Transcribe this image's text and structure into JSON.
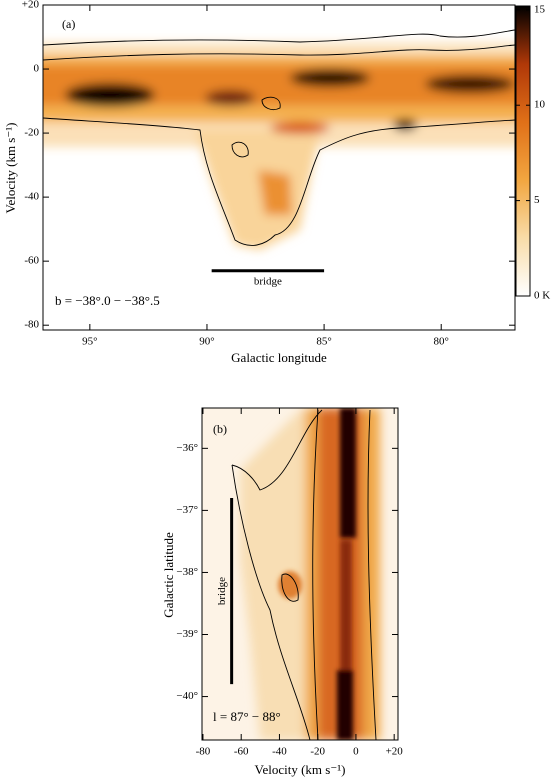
{
  "chart_data": [
    {
      "type": "heatmap",
      "panel_label": "(a)",
      "xlabel": "Galactic longitude",
      "ylabel": "Velocity (km s⁻¹)",
      "xlim": [
        97,
        76.85
      ],
      "ylim": [
        -81.5,
        20
      ],
      "xticks": [
        {
          "value": 95,
          "label": "95°"
        },
        {
          "value": 90,
          "label": "90°"
        },
        {
          "value": 85,
          "label": "85°"
        },
        {
          "value": 80,
          "label": "80°"
        }
      ],
      "yticks": [
        {
          "value": 20,
          "label": "+20"
        },
        0,
        -20,
        -40,
        -60,
        -80
      ],
      "annotation": "b = −38°.0 − −38°.5",
      "bridge": {
        "label": "bridge",
        "x": [
          89.8,
          85.0
        ],
        "y": [
          -63,
          -63
        ]
      },
      "colorbar": {
        "colors": [
          "#ffffff",
          "#f8dca8",
          "#f2a640",
          "#e07018",
          "#b03808",
          "#000000"
        ],
        "lim": [
          0,
          15.2
        ],
        "ticks": [
          15,
          10,
          5,
          {
            "value": 0,
            "label": "0 K"
          }
        ]
      }
    },
    {
      "type": "heatmap",
      "panel_label": "(b)",
      "xlabel": "Velocity (km s⁻¹)",
      "ylabel": "Galactic latitude",
      "xlim": [
        -80.5,
        22
      ],
      "ylim": [
        -40.7,
        -35.35
      ],
      "xticks": [
        -80,
        -60,
        -40,
        -20,
        0,
        {
          "value": 20,
          "label": "+20"
        }
      ],
      "yticks": [
        {
          "value": -36,
          "label": "−36°"
        },
        {
          "value": -37,
          "label": "−37°"
        },
        {
          "value": -38,
          "label": "−38°"
        },
        {
          "value": -39,
          "label": "−39°"
        },
        {
          "value": -40,
          "label": "−40°"
        }
      ],
      "annotation": "l = 87° − 88°",
      "bridge": {
        "label": "bridge",
        "x": [
          -65,
          -65
        ],
        "y": [
          -36.8,
          -39.8
        ]
      }
    }
  ]
}
